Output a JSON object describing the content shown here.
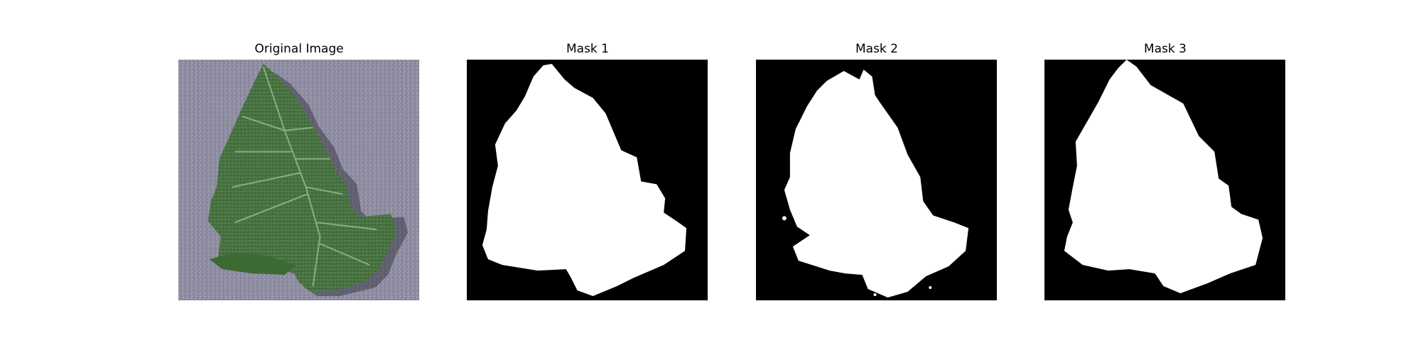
{
  "panels": [
    {
      "title": "Original Image",
      "kind": "photo",
      "subject": "green tomato leaf on grey textured background"
    },
    {
      "title": "Mask 1",
      "kind": "mask"
    },
    {
      "title": "Mask 2",
      "kind": "mask"
    },
    {
      "title": "Mask 3",
      "kind": "mask"
    }
  ],
  "colors": {
    "figure_background": "#ffffff",
    "photo_background": "#8e8ca0",
    "leaf_green": "#3f6a3a",
    "mask_background": "#000000",
    "mask_foreground": "#ffffff"
  }
}
